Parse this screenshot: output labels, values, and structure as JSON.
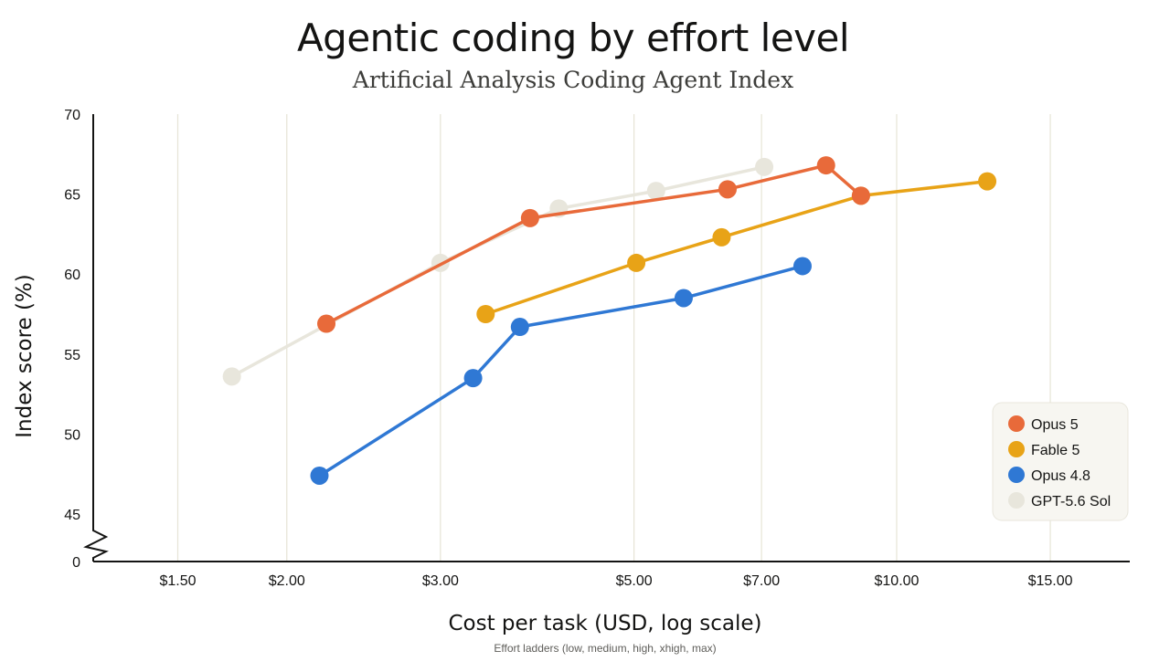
{
  "chart_data": {
    "type": "line",
    "title": "Agentic coding by effort level",
    "subtitle": "Artificial Analysis Coding Agent Index",
    "xlabel": "Cost per task (USD, log scale)",
    "x_note": "Effort ladders (low, medium, high, xhigh, max)",
    "ylabel": "Index score (%)",
    "x_scale": "log",
    "xlim": [
      1.2,
      18.5
    ],
    "ylim": [
      45,
      70
    ],
    "y_axis_break": {
      "below": 45,
      "bottom_tick": "0"
    },
    "x_ticks": [
      {
        "value": 1.5,
        "label": "$1.50"
      },
      {
        "value": 2.0,
        "label": "$2.00"
      },
      {
        "value": 3.0,
        "label": "$3.00"
      },
      {
        "value": 5.0,
        "label": "$5.00"
      },
      {
        "value": 7.0,
        "label": "$7.00"
      },
      {
        "value": 10.0,
        "label": "$10.00"
      },
      {
        "value": 15.0,
        "label": "$15.00"
      }
    ],
    "y_ticks": [
      {
        "value": 45,
        "label": "45"
      },
      {
        "value": 50,
        "label": "50"
      },
      {
        "value": 55,
        "label": "55"
      },
      {
        "value": 60,
        "label": "60"
      },
      {
        "value": 65,
        "label": "65"
      },
      {
        "value": 70,
        "label": "70"
      }
    ],
    "grid": "vertical",
    "legend_position": "bottom-right",
    "series": [
      {
        "name": "GPT-5.6 Sol",
        "color": "#e8e6dc",
        "points": [
          {
            "x": 1.73,
            "y": 53.6
          },
          {
            "x": 3.0,
            "y": 60.7
          },
          {
            "x": 4.1,
            "y": 64.1
          },
          {
            "x": 5.3,
            "y": 65.2
          },
          {
            "x": 7.05,
            "y": 66.7
          }
        ]
      },
      {
        "name": "Fable 5",
        "color": "#e8a317",
        "points": [
          {
            "x": 3.38,
            "y": 57.5
          },
          {
            "x": 5.03,
            "y": 60.7
          },
          {
            "x": 6.3,
            "y": 62.3
          },
          {
            "x": 9.1,
            "y": 64.9
          },
          {
            "x": 12.7,
            "y": 65.8
          }
        ]
      },
      {
        "name": "Opus 4.8",
        "color": "#2f78d4",
        "points": [
          {
            "x": 2.18,
            "y": 47.4
          },
          {
            "x": 3.27,
            "y": 53.5
          },
          {
            "x": 3.7,
            "y": 56.7
          },
          {
            "x": 5.7,
            "y": 58.5
          },
          {
            "x": 7.8,
            "y": 60.5
          }
        ]
      },
      {
        "name": "Opus 5",
        "color": "#e86a3a",
        "points": [
          {
            "x": 2.22,
            "y": 56.9
          },
          {
            "x": 3.8,
            "y": 63.5
          },
          {
            "x": 6.4,
            "y": 65.3
          },
          {
            "x": 8.3,
            "y": 66.8
          },
          {
            "x": 9.1,
            "y": 64.9
          }
        ]
      }
    ],
    "legend_order": [
      "Opus 5",
      "Fable 5",
      "Opus 4.8",
      "GPT-5.6 Sol"
    ]
  },
  "colors": {
    "text": "#141413",
    "grid": "#e6e4d6",
    "axis": "#141413",
    "legend_bg": "#f7f6f1",
    "legend_border": "#e8e6dc"
  }
}
